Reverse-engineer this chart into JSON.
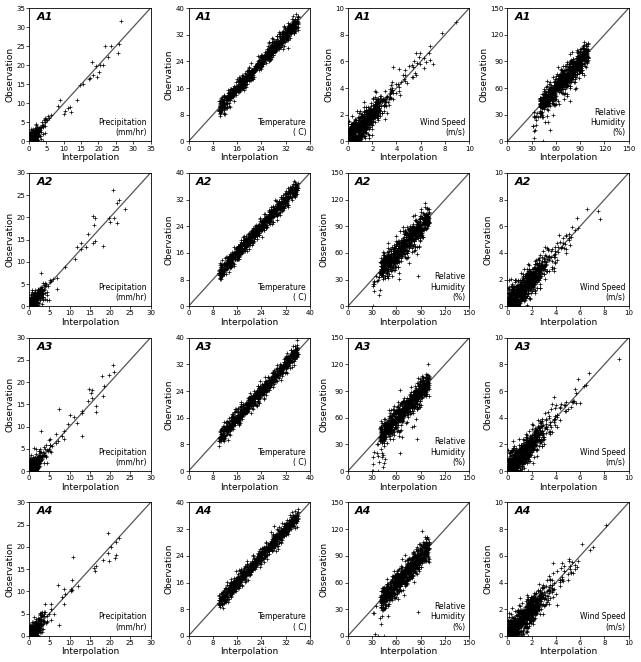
{
  "subplot_configs": [
    [
      {
        "label": "A1",
        "var": "Precipitation",
        "unit": "(mm/hr)",
        "xlim": [
          0,
          35
        ],
        "ylim": [
          0,
          35
        ],
        "xticks": [
          0,
          5,
          10,
          15,
          20,
          25,
          30,
          35
        ],
        "yticks": [
          0,
          5,
          10,
          15,
          20,
          25,
          30,
          35
        ],
        "ylabel": "Observation"
      },
      {
        "label": "A1",
        "var": "Temperature",
        "unit": "( C)",
        "xlim": [
          0,
          40
        ],
        "ylim": [
          0,
          40
        ],
        "xticks": [
          0,
          8,
          16,
          24,
          32,
          40
        ],
        "yticks": [
          0,
          8,
          16,
          24,
          32,
          40
        ],
        "ylabel": "Obervation"
      },
      {
        "label": "A1",
        "var": "Wind Speed",
        "unit": "(m/s)",
        "xlim": [
          0,
          10
        ],
        "ylim": [
          0,
          10
        ],
        "xticks": [
          0,
          2,
          4,
          6,
          8,
          10
        ],
        "yticks": [
          0,
          2,
          4,
          6,
          8,
          10
        ],
        "ylabel": "Observation"
      },
      {
        "label": "A1",
        "var": "Relative\nHumidity",
        "unit": "(%)",
        "xlim": [
          0,
          150
        ],
        "ylim": [
          0,
          150
        ],
        "xticks": [
          0,
          30,
          60,
          90,
          120,
          150
        ],
        "yticks": [
          0,
          30,
          60,
          90,
          120,
          150
        ],
        "ylabel": "Observation"
      }
    ],
    [
      {
        "label": "A2",
        "var": "Precipitation",
        "unit": "(mm/hr)",
        "xlim": [
          0,
          30
        ],
        "ylim": [
          0,
          30
        ],
        "xticks": [
          0,
          5,
          10,
          15,
          20,
          25,
          30
        ],
        "yticks": [
          0,
          5,
          10,
          15,
          20,
          25,
          30
        ],
        "ylabel": "Observation"
      },
      {
        "label": "A2",
        "var": "Temperature",
        "unit": "( C)",
        "xlim": [
          0,
          40
        ],
        "ylim": [
          0,
          40
        ],
        "xticks": [
          0,
          8,
          16,
          24,
          32,
          40
        ],
        "yticks": [
          0,
          8,
          16,
          24,
          32,
          40
        ],
        "ylabel": "Obervation"
      },
      {
        "label": "A2",
        "var": "Relative\nHumidity",
        "unit": "(%)",
        "xlim": [
          0,
          150
        ],
        "ylim": [
          0,
          150
        ],
        "xticks": [
          0,
          30,
          60,
          90,
          120,
          150
        ],
        "yticks": [
          0,
          30,
          60,
          90,
          120,
          150
        ],
        "ylabel": "Observation"
      },
      {
        "label": "A2",
        "var": "Wind Speed",
        "unit": "(m/s)",
        "xlim": [
          0,
          10
        ],
        "ylim": [
          0,
          10
        ],
        "xticks": [
          0,
          2,
          4,
          6,
          8,
          10
        ],
        "yticks": [
          0,
          2,
          4,
          6,
          8,
          10
        ],
        "ylabel": "Obervation"
      }
    ],
    [
      {
        "label": "A3",
        "var": "Precipitation",
        "unit": "(mm/hr)",
        "xlim": [
          0,
          30
        ],
        "ylim": [
          0,
          30
        ],
        "xticks": [
          0,
          5,
          10,
          15,
          20,
          25,
          30
        ],
        "yticks": [
          0,
          5,
          10,
          15,
          20,
          25,
          30
        ],
        "ylabel": "Observation"
      },
      {
        "label": "A3",
        "var": "Temperature",
        "unit": "( C)",
        "xlim": [
          0,
          40
        ],
        "ylim": [
          0,
          40
        ],
        "xticks": [
          0,
          8,
          16,
          24,
          32,
          40
        ],
        "yticks": [
          0,
          8,
          16,
          24,
          32,
          40
        ],
        "ylabel": "Obervation"
      },
      {
        "label": "A3",
        "var": "Relative\nHumidity",
        "unit": "(%)",
        "xlim": [
          0,
          150
        ],
        "ylim": [
          0,
          150
        ],
        "xticks": [
          0,
          30,
          60,
          90,
          120,
          150
        ],
        "yticks": [
          0,
          30,
          60,
          90,
          120,
          150
        ],
        "ylabel": "Observation"
      },
      {
        "label": "A3",
        "var": "Wind Speed",
        "unit": "(m/s)",
        "xlim": [
          0,
          10
        ],
        "ylim": [
          0,
          10
        ],
        "xticks": [
          0,
          2,
          4,
          6,
          8,
          10
        ],
        "yticks": [
          0,
          2,
          4,
          6,
          8,
          10
        ],
        "ylabel": "Obervation"
      }
    ],
    [
      {
        "label": "A4",
        "var": "Precipitation",
        "unit": "(mm/hr)",
        "xlim": [
          0,
          30
        ],
        "ylim": [
          0,
          30
        ],
        "xticks": [
          0,
          5,
          10,
          15,
          20,
          25,
          30
        ],
        "yticks": [
          0,
          5,
          10,
          15,
          20,
          25,
          30
        ],
        "ylabel": "Observation"
      },
      {
        "label": "A4",
        "var": "Temperature",
        "unit": "( C)",
        "xlim": [
          0,
          40
        ],
        "ylim": [
          0,
          40
        ],
        "xticks": [
          0,
          8,
          16,
          24,
          32,
          40
        ],
        "yticks": [
          0,
          8,
          16,
          24,
          32,
          40
        ],
        "ylabel": "Obervation"
      },
      {
        "label": "A4",
        "var": "Relative\nHumidity",
        "unit": "(%)",
        "xlim": [
          0,
          150
        ],
        "ylim": [
          0,
          150
        ],
        "xticks": [
          0,
          30,
          60,
          90,
          120,
          150
        ],
        "yticks": [
          0,
          30,
          60,
          90,
          120,
          150
        ],
        "ylabel": "Observation"
      },
      {
        "label": "A4",
        "var": "Wind Speed",
        "unit": "(m/s)",
        "xlim": [
          0,
          10
        ],
        "ylim": [
          0,
          10
        ],
        "xticks": [
          0,
          2,
          4,
          6,
          8,
          10
        ],
        "yticks": [
          0,
          2,
          4,
          6,
          8,
          10
        ],
        "ylabel": "Obervation"
      }
    ]
  ],
  "xlabel": "Interpolation",
  "scatter_color": "black",
  "scatter_size": 2.0,
  "line_color": "#555555",
  "background_color": "white"
}
